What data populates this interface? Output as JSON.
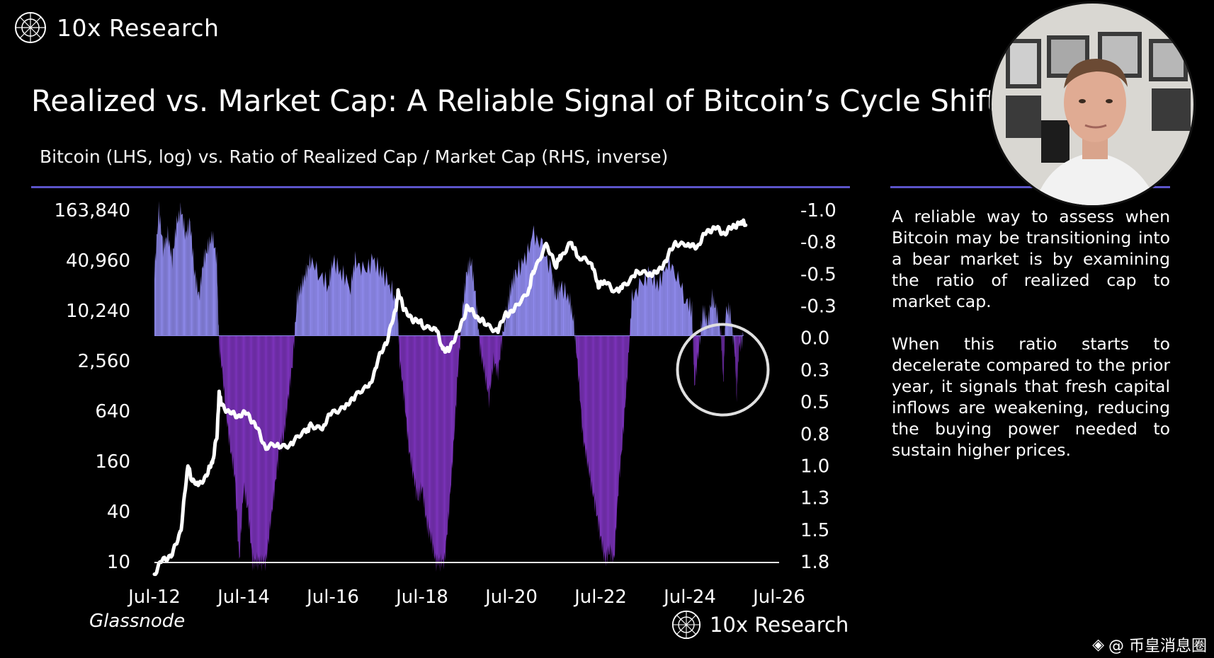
{
  "header": {
    "logo_text": "10x Research"
  },
  "title": "Realized vs. Market Cap: A Reliable Signal of Bitcoin’s Cycle Shift",
  "subtitle": "Bitcoin (LHS, log) vs. Ratio of Realized Cap / Market Cap (RHS, inverse)",
  "commentary": {
    "paragraph_1": "A reliable way to assess when Bitcoin may be transitioning into a bear market is by examining the ratio of realized cap to market cap.",
    "paragraph_2": "When this ratio starts to decelerate compared to the prior year, it signals that fresh capital inflows are weakening, reducing the buying power needed to sustain higher prices."
  },
  "footer": {
    "source": "Glassnode",
    "logo_text": "10x Research"
  },
  "watermark": {
    "text": "@ 币皇消息圈"
  },
  "colors": {
    "background": "#000000",
    "positive_area": "#8b86e6",
    "negative_area": "#7a32b8",
    "price_line": "#ffffff",
    "rule": "#5b54c9",
    "highlight_circle": "#e0e0e0"
  },
  "chart_data": {
    "type": "area",
    "x_tick_labels": [
      "Jul-12",
      "Jul-14",
      "Jul-16",
      "Jul-18",
      "Jul-20",
      "Jul-22",
      "Jul-24",
      "Jul-26"
    ],
    "x_range": [
      2012.5,
      2026.5
    ],
    "left_axis": {
      "label": "Bitcoin (LHS, log)",
      "scale": "log",
      "range": [
        10,
        163840
      ],
      "tick_labels": [
        "163,840",
        "40,960",
        "10,240",
        "2,560",
        "640",
        "160",
        "40",
        "10"
      ]
    },
    "right_axis": {
      "label": "Ratio of Realized Cap / Market Cap (RHS, inverse)",
      "inverted": true,
      "range": [
        -1.0,
        1.8
      ],
      "tick_labels": [
        "-1.0",
        "-0.8",
        "-0.5",
        "-0.3",
        "0.0",
        "0.3",
        "0.5",
        "0.8",
        "1.0",
        "1.3",
        "1.5",
        "1.8"
      ]
    },
    "annotation": {
      "type": "circle",
      "label": "highlighted 2024-2025 negative dips",
      "x_center": 2025.0
    },
    "series": [
      {
        "name": "Bitcoin price (LHS, log)",
        "style": "line",
        "points": [
          [
            2012.5,
            7
          ],
          [
            2012.7,
            11
          ],
          [
            2012.9,
            12
          ],
          [
            2013.1,
            25
          ],
          [
            2013.25,
            140
          ],
          [
            2013.35,
            90
          ],
          [
            2013.5,
            80
          ],
          [
            2013.7,
            120
          ],
          [
            2013.8,
            150
          ],
          [
            2013.9,
            320
          ],
          [
            2013.95,
            1000
          ],
          [
            2014.0,
            800
          ],
          [
            2014.2,
            600
          ],
          [
            2014.4,
            560
          ],
          [
            2014.6,
            600
          ],
          [
            2014.8,
            400
          ],
          [
            2015.0,
            230
          ],
          [
            2015.3,
            250
          ],
          [
            2015.6,
            260
          ],
          [
            2015.9,
            380
          ],
          [
            2016.0,
            430
          ],
          [
            2016.3,
            420
          ],
          [
            2016.5,
            650
          ],
          [
            2016.8,
            700
          ],
          [
            2017.0,
            1000
          ],
          [
            2017.3,
            1200
          ],
          [
            2017.5,
            2500
          ],
          [
            2017.7,
            4300
          ],
          [
            2017.9,
            10000
          ],
          [
            2017.96,
            17000
          ],
          [
            2018.1,
            10000
          ],
          [
            2018.3,
            8000
          ],
          [
            2018.5,
            7000
          ],
          [
            2018.8,
            6300
          ],
          [
            2018.96,
            3500
          ],
          [
            2019.1,
            3700
          ],
          [
            2019.3,
            5500
          ],
          [
            2019.5,
            11000
          ],
          [
            2019.7,
            9000
          ],
          [
            2019.9,
            7200
          ],
          [
            2020.2,
            6000
          ],
          [
            2020.4,
            9500
          ],
          [
            2020.6,
            11000
          ],
          [
            2020.9,
            19000
          ],
          [
            2021.0,
            32000
          ],
          [
            2021.28,
            60000
          ],
          [
            2021.5,
            35000
          ],
          [
            2021.6,
            45000
          ],
          [
            2021.85,
            66000
          ],
          [
            2022.0,
            42000
          ],
          [
            2022.3,
            40000
          ],
          [
            2022.45,
            20000
          ],
          [
            2022.6,
            22000
          ],
          [
            2022.85,
            17000
          ],
          [
            2023.0,
            21000
          ],
          [
            2023.3,
            28000
          ],
          [
            2023.6,
            29000
          ],
          [
            2023.8,
            30000
          ],
          [
            2024.0,
            45000
          ],
          [
            2024.2,
            68000
          ],
          [
            2024.5,
            60000
          ],
          [
            2024.7,
            62000
          ],
          [
            2024.9,
            95000
          ],
          [
            2025.1,
            100000
          ],
          [
            2025.3,
            85000
          ],
          [
            2025.5,
            108000
          ],
          [
            2025.65,
            115000
          ],
          [
            2025.75,
            108000
          ]
        ]
      },
      {
        "name": "Realized Cap / Market Cap ratio, YoY change (RHS, inverse)",
        "style": "filled-area",
        "points": [
          [
            2012.5,
            -0.5
          ],
          [
            2012.6,
            -1.0
          ],
          [
            2012.7,
            -0.7
          ],
          [
            2012.8,
            -0.8
          ],
          [
            2012.9,
            -0.6
          ],
          [
            2013.0,
            -0.9
          ],
          [
            2013.1,
            -1.0
          ],
          [
            2013.2,
            -0.8
          ],
          [
            2013.3,
            -0.9
          ],
          [
            2013.4,
            -0.5
          ],
          [
            2013.5,
            -0.3
          ],
          [
            2013.6,
            -0.6
          ],
          [
            2013.7,
            -0.7
          ],
          [
            2013.8,
            -0.8
          ],
          [
            2013.9,
            -0.6
          ],
          [
            2013.95,
            0.1
          ],
          [
            2014.0,
            0.2
          ],
          [
            2014.1,
            0.6
          ],
          [
            2014.2,
            0.9
          ],
          [
            2014.3,
            1.1
          ],
          [
            2014.4,
            1.8
          ],
          [
            2014.5,
            1.2
          ],
          [
            2014.6,
            1.4
          ],
          [
            2014.7,
            1.8
          ],
          [
            2014.8,
            1.8
          ],
          [
            2014.9,
            1.8
          ],
          [
            2015.0,
            1.8
          ],
          [
            2015.1,
            1.5
          ],
          [
            2015.2,
            1.2
          ],
          [
            2015.3,
            0.9
          ],
          [
            2015.4,
            0.8
          ],
          [
            2015.5,
            0.5
          ],
          [
            2015.6,
            0.2
          ],
          [
            2015.7,
            -0.3
          ],
          [
            2015.8,
            -0.4
          ],
          [
            2015.9,
            -0.5
          ],
          [
            2016.0,
            -0.6
          ],
          [
            2016.2,
            -0.5
          ],
          [
            2016.4,
            -0.4
          ],
          [
            2016.5,
            -0.6
          ],
          [
            2016.7,
            -0.5
          ],
          [
            2016.9,
            -0.4
          ],
          [
            2017.0,
            -0.6
          ],
          [
            2017.2,
            -0.5
          ],
          [
            2017.4,
            -0.6
          ],
          [
            2017.6,
            -0.5
          ],
          [
            2017.8,
            -0.4
          ],
          [
            2017.95,
            -0.2
          ],
          [
            2018.0,
            0.2
          ],
          [
            2018.1,
            0.5
          ],
          [
            2018.2,
            0.9
          ],
          [
            2018.3,
            1.1
          ],
          [
            2018.4,
            1.3
          ],
          [
            2018.5,
            1.2
          ],
          [
            2018.6,
            1.5
          ],
          [
            2018.7,
            1.6
          ],
          [
            2018.8,
            1.8
          ],
          [
            2018.9,
            1.8
          ],
          [
            2019.0,
            1.8
          ],
          [
            2019.1,
            1.4
          ],
          [
            2019.2,
            0.9
          ],
          [
            2019.3,
            0.3
          ],
          [
            2019.4,
            -0.2
          ],
          [
            2019.5,
            -0.5
          ],
          [
            2019.6,
            -0.6
          ],
          [
            2019.7,
            -0.3
          ],
          [
            2019.8,
            0.1
          ],
          [
            2019.9,
            0.3
          ],
          [
            2020.0,
            0.5
          ],
          [
            2020.1,
            0.2
          ],
          [
            2020.2,
            0.3
          ],
          [
            2020.3,
            0.0
          ],
          [
            2020.4,
            -0.2
          ],
          [
            2020.5,
            -0.4
          ],
          [
            2020.6,
            -0.5
          ],
          [
            2020.8,
            -0.6
          ],
          [
            2021.0,
            -0.8
          ],
          [
            2021.2,
            -0.7
          ],
          [
            2021.4,
            -0.5
          ],
          [
            2021.5,
            -0.3
          ],
          [
            2021.6,
            -0.4
          ],
          [
            2021.8,
            -0.3
          ],
          [
            2021.9,
            -0.1
          ],
          [
            2022.0,
            0.3
          ],
          [
            2022.1,
            0.8
          ],
          [
            2022.2,
            1.0
          ],
          [
            2022.3,
            1.2
          ],
          [
            2022.4,
            1.4
          ],
          [
            2022.5,
            1.6
          ],
          [
            2022.6,
            1.8
          ],
          [
            2022.7,
            1.7
          ],
          [
            2022.8,
            1.8
          ],
          [
            2022.9,
            1.2
          ],
          [
            2023.0,
            0.8
          ],
          [
            2023.1,
            0.3
          ],
          [
            2023.2,
            -0.3
          ],
          [
            2023.4,
            -0.4
          ],
          [
            2023.6,
            -0.5
          ],
          [
            2023.8,
            -0.4
          ],
          [
            2024.0,
            -0.6
          ],
          [
            2024.2,
            -0.5
          ],
          [
            2024.4,
            -0.3
          ],
          [
            2024.55,
            -0.2
          ],
          [
            2024.6,
            0.4
          ],
          [
            2024.7,
            0.1
          ],
          [
            2024.8,
            -0.2
          ],
          [
            2024.9,
            -0.1
          ],
          [
            2025.0,
            -0.3
          ],
          [
            2025.1,
            -0.2
          ],
          [
            2025.2,
            0.0
          ],
          [
            2025.25,
            0.4
          ],
          [
            2025.3,
            -0.2
          ],
          [
            2025.4,
            -0.2
          ],
          [
            2025.5,
            0.1
          ],
          [
            2025.55,
            0.45
          ],
          [
            2025.6,
            0.1
          ],
          [
            2025.7,
            0.0
          ]
        ]
      }
    ]
  }
}
